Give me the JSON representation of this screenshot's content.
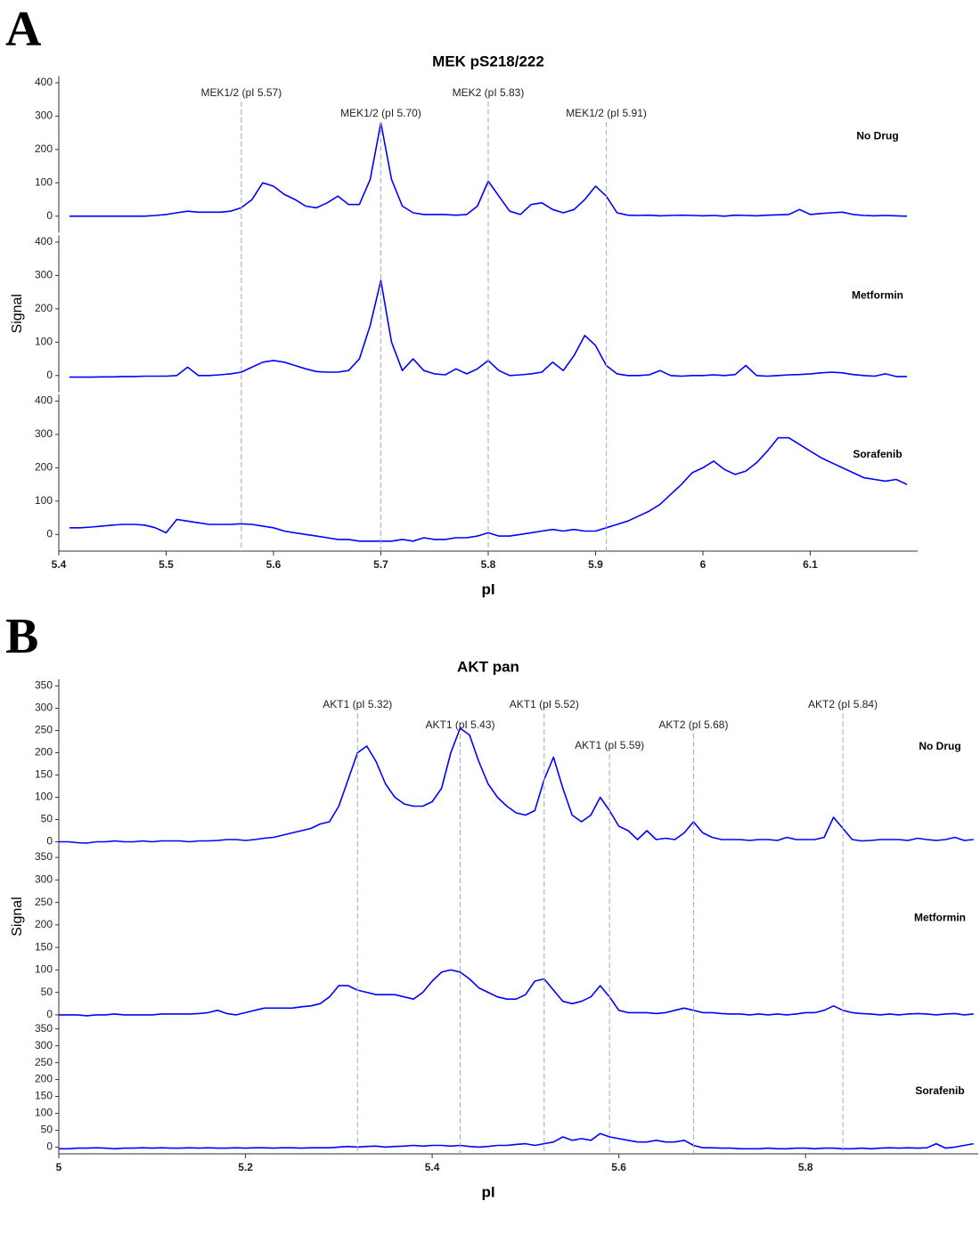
{
  "chart_data": [
    {
      "type": "line",
      "panel_label": "A",
      "title": "MEK pS218/222",
      "xlabel": "pI",
      "ylabel": "Signal",
      "xlim": [
        5.4,
        6.2
      ],
      "xticks": [
        5.4,
        5.5,
        5.6,
        5.7,
        5.8,
        5.9,
        6,
        6.1
      ],
      "ylim": [
        -50,
        420
      ],
      "yticks": [
        0,
        100,
        200,
        300,
        400
      ],
      "annotations": [
        {
          "x": 5.57,
          "label": "MEK1/2 (pI 5.57)"
        },
        {
          "x": 5.7,
          "label": "MEK1/2 (pI 5.70)"
        },
        {
          "x": 5.8,
          "label": "MEK2 (pI 5.83)"
        },
        {
          "x": 5.91,
          "label": "MEK1/2 (pI 5.91)"
        }
      ],
      "x": [
        5.41,
        5.42,
        5.43,
        5.44,
        5.45,
        5.46,
        5.47,
        5.48,
        5.49,
        5.5,
        5.51,
        5.52,
        5.53,
        5.54,
        5.55,
        5.56,
        5.57,
        5.58,
        5.59,
        5.6,
        5.61,
        5.62,
        5.63,
        5.64,
        5.65,
        5.66,
        5.67,
        5.68,
        5.69,
        5.7,
        5.71,
        5.72,
        5.73,
        5.74,
        5.75,
        5.76,
        5.77,
        5.78,
        5.79,
        5.8,
        5.81,
        5.82,
        5.83,
        5.84,
        5.85,
        5.86,
        5.87,
        5.88,
        5.89,
        5.9,
        5.91,
        5.92,
        5.93,
        5.94,
        5.95,
        5.96,
        5.97,
        5.98,
        5.99,
        6.0,
        6.01,
        6.02,
        6.03,
        6.04,
        6.05,
        6.06,
        6.07,
        6.08,
        6.09,
        6.1,
        6.11,
        6.12,
        6.13,
        6.14,
        6.15,
        6.16,
        6.17,
        6.18,
        6.19
      ],
      "series": [
        {
          "name": "No Drug",
          "color": "#0000ff",
          "values": [
            0,
            0,
            0,
            0,
            0,
            0,
            0,
            0,
            2,
            5,
            10,
            15,
            12,
            12,
            12,
            15,
            25,
            50,
            100,
            90,
            65,
            50,
            30,
            25,
            40,
            60,
            35,
            35,
            110,
            280,
            110,
            30,
            10,
            5,
            5,
            5,
            3,
            5,
            30,
            105,
            60,
            15,
            5,
            35,
            40,
            20,
            10,
            20,
            50,
            90,
            60,
            10,
            3,
            2,
            3,
            1,
            2,
            3,
            2,
            1,
            2,
            0,
            3,
            2,
            1,
            3,
            4,
            5,
            20,
            5,
            8,
            10,
            12,
            5,
            2,
            1,
            2,
            1,
            0
          ]
        },
        {
          "name": "Metformin",
          "color": "#0000ff",
          "values": [
            -5,
            -5,
            -5,
            -4,
            -4,
            -3,
            -3,
            -2,
            -2,
            -2,
            0,
            25,
            0,
            0,
            2,
            5,
            10,
            25,
            40,
            45,
            40,
            30,
            20,
            12,
            10,
            10,
            15,
            50,
            150,
            285,
            100,
            15,
            50,
            15,
            5,
            2,
            20,
            5,
            20,
            45,
            15,
            0,
            2,
            5,
            10,
            40,
            15,
            60,
            120,
            90,
            30,
            5,
            0,
            0,
            2,
            15,
            0,
            -2,
            0,
            0,
            2,
            0,
            3,
            30,
            0,
            -2,
            0,
            2,
            3,
            5,
            8,
            10,
            8,
            3,
            0,
            -2,
            5,
            -3,
            -3
          ]
        },
        {
          "name": "Sorafenib",
          "color": "#0000ff",
          "values": [
            20,
            20,
            22,
            25,
            28,
            30,
            30,
            28,
            20,
            5,
            45,
            40,
            35,
            30,
            30,
            30,
            32,
            30,
            25,
            20,
            10,
            5,
            0,
            -5,
            -10,
            -15,
            -15,
            -20,
            -20,
            -20,
            -20,
            -15,
            -20,
            -10,
            -15,
            -15,
            -10,
            -10,
            -5,
            5,
            -5,
            -5,
            0,
            5,
            10,
            15,
            10,
            15,
            10,
            10,
            20,
            30,
            40,
            55,
            70,
            90,
            120,
            150,
            185,
            200,
            220,
            195,
            180,
            190,
            215,
            250,
            290,
            290,
            270,
            250,
            230,
            215,
            200,
            185,
            170,
            165,
            160,
            165,
            150
          ]
        }
      ]
    },
    {
      "type": "line",
      "panel_label": "B",
      "title": "AKT pan",
      "xlabel": "pI",
      "ylabel": "Signal",
      "xlim": [
        5,
        5.985
      ],
      "xticks": [
        5,
        5.2,
        5.4,
        5.6,
        5.8
      ],
      "ylim": [
        -20,
        365
      ],
      "yticks": [
        0,
        50,
        100,
        150,
        200,
        250,
        300,
        350
      ],
      "annotations": [
        {
          "x": 5.32,
          "label": "AKT1 (pI 5.32)"
        },
        {
          "x": 5.43,
          "label": "AKT1 (pI 5.43)"
        },
        {
          "x": 5.52,
          "label": "AKT1 (pI 5.52)"
        },
        {
          "x": 5.59,
          "label": "AKT1 (pI 5.59)"
        },
        {
          "x": 5.68,
          "label": "AKT2 (pI 5.68)"
        },
        {
          "x": 5.84,
          "label": "AKT2 (pI 5.84)"
        }
      ],
      "x": [
        5.0,
        5.01,
        5.02,
        5.03,
        5.04,
        5.05,
        5.06,
        5.07,
        5.08,
        5.09,
        5.1,
        5.11,
        5.12,
        5.13,
        5.14,
        5.15,
        5.16,
        5.17,
        5.18,
        5.19,
        5.2,
        5.21,
        5.22,
        5.23,
        5.24,
        5.25,
        5.26,
        5.27,
        5.28,
        5.29,
        5.3,
        5.31,
        5.32,
        5.33,
        5.34,
        5.35,
        5.36,
        5.37,
        5.38,
        5.39,
        5.4,
        5.41,
        5.42,
        5.43,
        5.44,
        5.45,
        5.46,
        5.47,
        5.48,
        5.49,
        5.5,
        5.51,
        5.52,
        5.53,
        5.54,
        5.55,
        5.56,
        5.57,
        5.58,
        5.59,
        5.6,
        5.61,
        5.62,
        5.63,
        5.64,
        5.65,
        5.66,
        5.67,
        5.68,
        5.69,
        5.7,
        5.71,
        5.72,
        5.73,
        5.74,
        5.75,
        5.76,
        5.77,
        5.78,
        5.79,
        5.8,
        5.81,
        5.82,
        5.83,
        5.84,
        5.85,
        5.86,
        5.87,
        5.88,
        5.89,
        5.9,
        5.91,
        5.92,
        5.93,
        5.94,
        5.95,
        5.96,
        5.97,
        5.98
      ],
      "series": [
        {
          "name": "No Drug",
          "color": "#0000ff",
          "values": [
            0,
            0,
            -2,
            -3,
            0,
            0,
            2,
            0,
            0,
            2,
            0,
            2,
            2,
            2,
            0,
            2,
            2,
            3,
            5,
            5,
            3,
            5,
            8,
            10,
            15,
            20,
            25,
            30,
            40,
            45,
            80,
            140,
            200,
            215,
            180,
            130,
            100,
            85,
            80,
            80,
            90,
            120,
            200,
            255,
            240,
            180,
            130,
            100,
            80,
            65,
            60,
            70,
            140,
            190,
            120,
            60,
            45,
            60,
            100,
            70,
            35,
            25,
            5,
            25,
            5,
            8,
            5,
            20,
            45,
            20,
            10,
            5,
            5,
            5,
            3,
            5,
            5,
            3,
            10,
            5,
            5,
            5,
            10,
            55,
            30,
            5,
            2,
            3,
            5,
            5,
            5,
            3,
            8,
            5,
            3,
            5,
            10,
            3,
            5
          ]
        },
        {
          "name": "Metformin",
          "color": "#0000ff",
          "values": [
            0,
            0,
            0,
            -2,
            0,
            0,
            2,
            0,
            0,
            0,
            0,
            2,
            2,
            2,
            2,
            3,
            5,
            10,
            3,
            0,
            5,
            10,
            15,
            15,
            15,
            15,
            18,
            20,
            25,
            40,
            65,
            65,
            55,
            50,
            45,
            45,
            45,
            40,
            35,
            50,
            75,
            95,
            100,
            95,
            80,
            60,
            50,
            40,
            35,
            35,
            45,
            75,
            80,
            55,
            30,
            25,
            30,
            40,
            65,
            40,
            10,
            5,
            5,
            5,
            3,
            5,
            10,
            15,
            10,
            5,
            5,
            3,
            2,
            2,
            0,
            2,
            0,
            2,
            0,
            2,
            5,
            5,
            10,
            20,
            10,
            5,
            3,
            2,
            0,
            2,
            0,
            2,
            3,
            2,
            0,
            2,
            3,
            0,
            2
          ]
        },
        {
          "name": "Sorafenib",
          "color": "#0000ff",
          "values": [
            -5,
            -5,
            -3,
            -3,
            -2,
            -3,
            -5,
            -3,
            -3,
            -2,
            -3,
            -2,
            -3,
            -3,
            -2,
            -3,
            -2,
            -3,
            -3,
            -2,
            -3,
            -2,
            -2,
            -3,
            -2,
            -2,
            -3,
            -2,
            -2,
            -2,
            0,
            2,
            0,
            2,
            3,
            0,
            2,
            3,
            5,
            3,
            5,
            5,
            3,
            5,
            2,
            0,
            2,
            5,
            5,
            8,
            10,
            5,
            10,
            15,
            30,
            20,
            25,
            20,
            40,
            30,
            25,
            20,
            15,
            15,
            20,
            15,
            15,
            20,
            5,
            -2,
            -2,
            -3,
            -3,
            -5,
            -5,
            -5,
            -3,
            -5,
            -5,
            -3,
            -3,
            -5,
            -3,
            -3,
            -5,
            -5,
            -3,
            -5,
            -3,
            -2,
            -3,
            -2,
            -3,
            -2,
            10,
            -3,
            0,
            5,
            10
          ]
        }
      ]
    }
  ]
}
